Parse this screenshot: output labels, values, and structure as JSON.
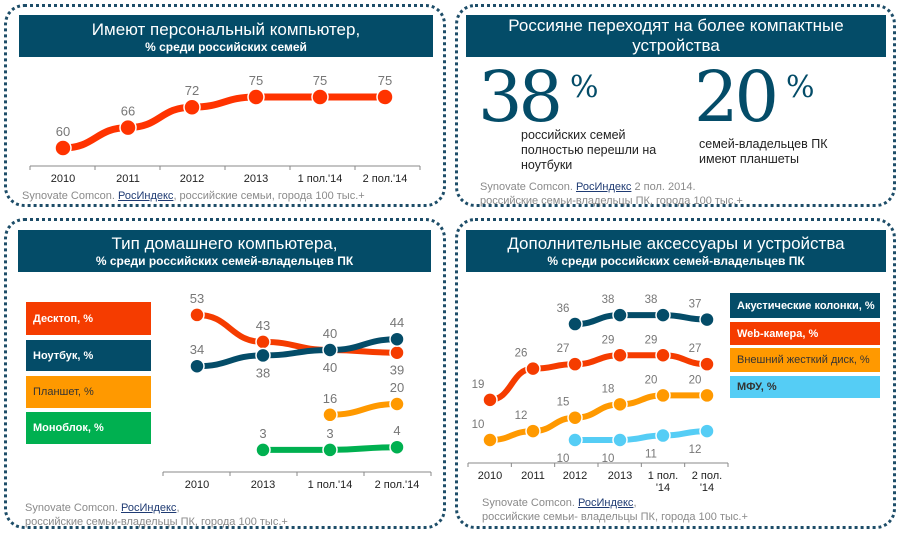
{
  "colors": {
    "navy": "#044c68",
    "red": "#f53c00",
    "orange": "#ff9900",
    "green": "#00b050",
    "cyan": "#55cdf5"
  },
  "panel1": {
    "title": "Имеют персональный компьютер,",
    "subtitle": "% среди российских семей",
    "source_prefix": "Synovate Comcon. ",
    "source_link": "РосИндекс",
    "source_suffix": ", российские семьи, города 100 тыс.+"
  },
  "panel2": {
    "title": "Россияне переходят на более компактные устройства",
    "stat1_value": "38",
    "stat1_unit": "%",
    "stat1_text": [
      "российских семей",
      "полностью перешли на",
      "ноутбуки"
    ],
    "stat2_value": "20",
    "stat2_unit": "%",
    "stat2_text": [
      "семей-владельцев ПК",
      "имеют планшеты"
    ],
    "source_prefix": "Synovate Comcon. ",
    "source_link": "РосИндекс",
    "source_suffix": " 2 пол. 2014.",
    "source_line2": "российские семьи-владельцы ПК, города 100 тыс.+"
  },
  "panel3": {
    "title": "Тип домашнего компьютера,",
    "subtitle": "% среди российских семей-владельцев ПК",
    "source_prefix": "Synovate Comcon. ",
    "source_link": "РосИндекс",
    "source_suffix": ",",
    "source_line2": "российские семьи-владельцы ПК, города 100 тыс.+"
  },
  "panel4": {
    "title": "Дополнительные аксессуары и устройства",
    "subtitle": "% среди российских семей-владельцев ПК",
    "source_prefix": "Synovate Comcon. ",
    "source_link": "РосИндекс",
    "source_suffix": ",",
    "source_line2": "российские семьи- владельцы ПК,  города 100 тыс.+"
  },
  "chart_data": [
    {
      "type": "line",
      "title": "Имеют персональный компьютер, % среди российских семей",
      "categories": [
        "2010",
        "2011",
        "2012",
        "2013",
        "1 пол.'14",
        "2 пол.'14"
      ],
      "series": [
        {
          "values": [
            60,
            66,
            72,
            75,
            75,
            75
          ],
          "color": "#ff3300"
        }
      ],
      "grid": false
    },
    {
      "type": "line",
      "title": "Тип домашнего компьютера, % среди российских семей-владельцев ПК",
      "categories": [
        "2010",
        "2013",
        "1 пол.'14",
        "2 пол.'14"
      ],
      "legend": "left",
      "series": [
        {
          "name": "Десктоп, %",
          "values": [
            53,
            43,
            40,
            39
          ],
          "color": "#f53c00"
        },
        {
          "name": "Ноутбук, %",
          "values": [
            34,
            38,
            40,
            44
          ],
          "color": "#044c68"
        },
        {
          "name": "Планшет, %",
          "values": [
            null,
            null,
            16,
            20
          ],
          "color": "#ff9900"
        },
        {
          "name": "Моноблок, %",
          "values": [
            null,
            3,
            3,
            4
          ],
          "color": "#00b050"
        }
      ],
      "grid": false
    },
    {
      "type": "line",
      "title": "Дополнительные аксессуары и устройства, % среди российских семей-владельцев ПК",
      "categories": [
        "2010",
        "2011",
        "2012",
        "2013",
        "1 пол. '14",
        "2 пол. '14"
      ],
      "legend": "right",
      "series": [
        {
          "name": "Акустические колонки, %",
          "values": [
            null,
            null,
            36,
            38,
            38,
            37
          ],
          "color": "#044c68"
        },
        {
          "name": "Web-камера, %",
          "values": [
            19,
            26,
            27,
            29,
            29,
            27
          ],
          "color": "#f53c00"
        },
        {
          "name": "Внешний жесткий диск, %",
          "values": [
            10,
            12,
            15,
            18,
            20,
            20
          ],
          "color": "#ff9900"
        },
        {
          "name": "МФУ, %",
          "values": [
            null,
            null,
            10,
            10,
            11,
            12
          ],
          "color": "#55cdf5"
        }
      ],
      "grid": false
    }
  ]
}
